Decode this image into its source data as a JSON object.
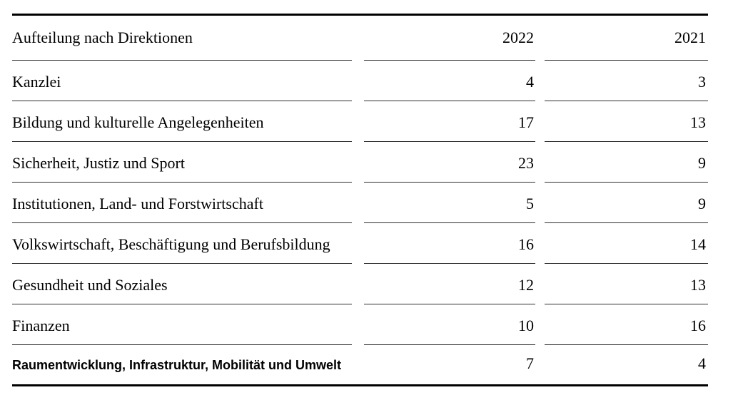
{
  "table": {
    "header": {
      "label": "Aufteilung nach Direktionen",
      "col_2022": "2022",
      "col_2021": "2021"
    },
    "rows": [
      {
        "label": "Kanzlei",
        "v2022": "4",
        "v2021": "3",
        "bold": false
      },
      {
        "label": "Bildung und kulturelle Angelegenheiten",
        "v2022": "17",
        "v2021": "13",
        "bold": false
      },
      {
        "label": "Sicherheit, Justiz und Sport",
        "v2022": "23",
        "v2021": "9",
        "bold": false
      },
      {
        "label": "Institutionen, Land- und Forstwirtschaft",
        "v2022": "5",
        "v2021": "9",
        "bold": false
      },
      {
        "label": "Volkswirtschaft, Beschäftigung und Berufsbildung",
        "v2022": "16",
        "v2021": "14",
        "bold": false
      },
      {
        "label": "Gesundheit und Soziales",
        "v2022": "12",
        "v2021": "13",
        "bold": false
      },
      {
        "label": "Finanzen",
        "v2022": "10",
        "v2021": "16",
        "bold": false
      },
      {
        "label": "Raumentwicklung, Infrastruktur, Mobilität und Umwelt",
        "v2022": "7",
        "v2021": "4",
        "bold": true
      }
    ],
    "colors": {
      "text": "#000000",
      "thin_rule": "#2e2e2e",
      "thick_rule": "#000000",
      "background": "#ffffff"
    }
  }
}
